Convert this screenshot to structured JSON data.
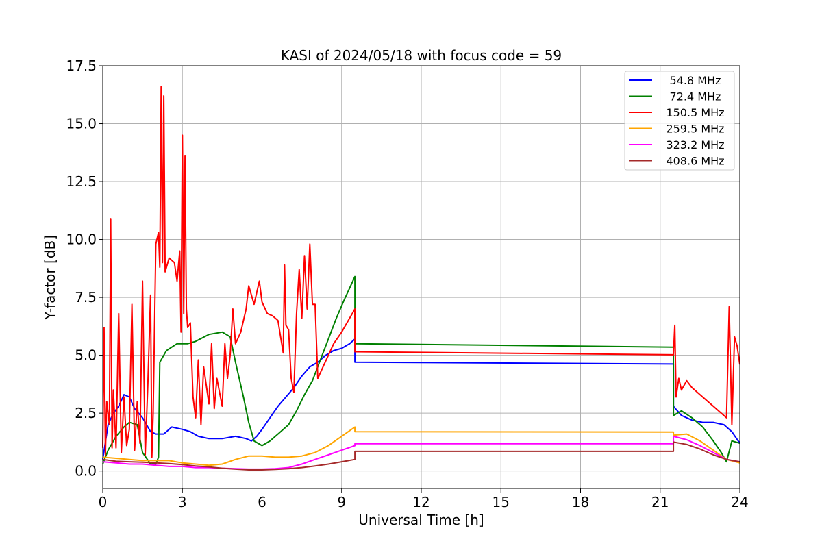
{
  "chart_data": {
    "type": "line",
    "title": "KASI of 2024/05/18 with focus code = 59",
    "xlabel": "Universal Time [h]",
    "ylabel": "Y-factor [dB]",
    "xlim": [
      0,
      24
    ],
    "ylim": [
      -0.75,
      17.5
    ],
    "xticks": [
      "0",
      "3",
      "6",
      "9",
      "12",
      "15",
      "18",
      "21",
      "24"
    ],
    "yticks": [
      "0.0",
      "2.5",
      "5.0",
      "7.5",
      "10.0",
      "12.5",
      "15.0",
      "17.5"
    ],
    "grid": true,
    "legend_position": "upper right",
    "series": [
      {
        "name": "54.8 MHz",
        "color": "#0000ff",
        "points": [
          [
            0.0,
            0.5
          ],
          [
            0.2,
            2.0
          ],
          [
            0.4,
            2.5
          ],
          [
            0.6,
            2.8
          ],
          [
            0.8,
            3.3
          ],
          [
            1.0,
            3.2
          ],
          [
            1.2,
            2.7
          ],
          [
            1.5,
            2.3
          ],
          [
            1.8,
            1.7
          ],
          [
            2.0,
            1.6
          ],
          [
            2.3,
            1.6
          ],
          [
            2.6,
            1.9
          ],
          [
            3.0,
            1.8
          ],
          [
            3.3,
            1.7
          ],
          [
            3.6,
            1.5
          ],
          [
            4.0,
            1.4
          ],
          [
            4.5,
            1.4
          ],
          [
            5.0,
            1.5
          ],
          [
            5.4,
            1.4
          ],
          [
            5.6,
            1.3
          ],
          [
            5.8,
            1.5
          ],
          [
            6.0,
            1.8
          ],
          [
            6.3,
            2.3
          ],
          [
            6.6,
            2.8
          ],
          [
            6.9,
            3.2
          ],
          [
            7.2,
            3.6
          ],
          [
            7.5,
            4.1
          ],
          [
            7.8,
            4.5
          ],
          [
            8.1,
            4.7
          ],
          [
            8.4,
            5.0
          ],
          [
            8.7,
            5.2
          ],
          [
            9.0,
            5.3
          ],
          [
            9.3,
            5.5
          ],
          [
            9.5,
            5.7
          ],
          [
            9.5,
            4.7
          ],
          [
            21.5,
            4.62
          ],
          [
            21.5,
            2.8
          ],
          [
            21.8,
            2.4
          ],
          [
            22.2,
            2.2
          ],
          [
            22.6,
            2.1
          ],
          [
            23.0,
            2.1
          ],
          [
            23.4,
            2.0
          ],
          [
            23.7,
            1.7
          ],
          [
            24.0,
            1.2
          ]
        ]
      },
      {
        "name": "72.4 MHz",
        "color": "#008000",
        "points": [
          [
            0.0,
            0.3
          ],
          [
            0.2,
            0.9
          ],
          [
            0.5,
            1.5
          ],
          [
            0.8,
            1.9
          ],
          [
            1.0,
            2.1
          ],
          [
            1.3,
            2.0
          ],
          [
            1.5,
            0.8
          ],
          [
            1.8,
            0.3
          ],
          [
            2.0,
            0.3
          ],
          [
            2.1,
            0.6
          ],
          [
            2.15,
            4.7
          ],
          [
            2.4,
            5.2
          ],
          [
            2.8,
            5.5
          ],
          [
            3.2,
            5.5
          ],
          [
            3.5,
            5.6
          ],
          [
            4.0,
            5.9
          ],
          [
            4.5,
            6.0
          ],
          [
            4.8,
            5.8
          ],
          [
            5.0,
            4.7
          ],
          [
            5.3,
            3.2
          ],
          [
            5.5,
            2.1
          ],
          [
            5.7,
            1.3
          ],
          [
            6.0,
            1.1
          ],
          [
            6.3,
            1.3
          ],
          [
            6.6,
            1.6
          ],
          [
            7.0,
            2.0
          ],
          [
            7.3,
            2.6
          ],
          [
            7.6,
            3.3
          ],
          [
            7.9,
            3.9
          ],
          [
            8.2,
            4.8
          ],
          [
            8.5,
            5.7
          ],
          [
            8.8,
            6.6
          ],
          [
            9.1,
            7.4
          ],
          [
            9.3,
            7.9
          ],
          [
            9.5,
            8.4
          ],
          [
            9.5,
            5.5
          ],
          [
            21.5,
            5.35
          ],
          [
            21.5,
            2.4
          ],
          [
            21.8,
            2.6
          ],
          [
            22.2,
            2.3
          ],
          [
            22.6,
            1.9
          ],
          [
            23.0,
            1.3
          ],
          [
            23.3,
            0.8
          ],
          [
            23.5,
            0.4
          ],
          [
            23.7,
            1.3
          ],
          [
            24.0,
            1.2
          ]
        ]
      },
      {
        "name": "150.5 MHz",
        "color": "#ff0000",
        "points": [
          [
            0.0,
            1.0
          ],
          [
            0.05,
            6.2
          ],
          [
            0.1,
            0.7
          ],
          [
            0.15,
            3.0
          ],
          [
            0.25,
            2.0
          ],
          [
            0.3,
            10.9
          ],
          [
            0.35,
            1.0
          ],
          [
            0.4,
            3.5
          ],
          [
            0.5,
            1.0
          ],
          [
            0.6,
            6.8
          ],
          [
            0.7,
            0.8
          ],
          [
            0.8,
            3.2
          ],
          [
            0.9,
            1.1
          ],
          [
            1.0,
            1.8
          ],
          [
            1.1,
            7.2
          ],
          [
            1.2,
            0.9
          ],
          [
            1.3,
            3.0
          ],
          [
            1.4,
            1.2
          ],
          [
            1.5,
            8.2
          ],
          [
            1.6,
            0.7
          ],
          [
            1.7,
            3.8
          ],
          [
            1.8,
            7.6
          ],
          [
            1.85,
            0.6
          ],
          [
            1.9,
            2.5
          ],
          [
            2.0,
            9.8
          ],
          [
            2.1,
            10.3
          ],
          [
            2.15,
            8.8
          ],
          [
            2.2,
            16.6
          ],
          [
            2.25,
            9.0
          ],
          [
            2.3,
            16.2
          ],
          [
            2.35,
            8.6
          ],
          [
            2.5,
            9.2
          ],
          [
            2.7,
            9.0
          ],
          [
            2.8,
            8.2
          ],
          [
            2.9,
            9.5
          ],
          [
            2.95,
            6.0
          ],
          [
            3.0,
            14.5
          ],
          [
            3.05,
            6.8
          ],
          [
            3.1,
            13.6
          ],
          [
            3.15,
            7.0
          ],
          [
            3.2,
            6.2
          ],
          [
            3.3,
            6.4
          ],
          [
            3.4,
            3.2
          ],
          [
            3.5,
            2.3
          ],
          [
            3.6,
            4.8
          ],
          [
            3.7,
            2.0
          ],
          [
            3.8,
            4.5
          ],
          [
            4.0,
            2.9
          ],
          [
            4.1,
            5.5
          ],
          [
            4.2,
            2.7
          ],
          [
            4.3,
            4.0
          ],
          [
            4.5,
            2.8
          ],
          [
            4.6,
            5.5
          ],
          [
            4.7,
            4.0
          ],
          [
            4.8,
            5.0
          ],
          [
            4.9,
            7.0
          ],
          [
            5.0,
            5.5
          ],
          [
            5.2,
            6.0
          ],
          [
            5.4,
            7.0
          ],
          [
            5.5,
            8.0
          ],
          [
            5.7,
            7.2
          ],
          [
            5.9,
            8.2
          ],
          [
            6.0,
            7.3
          ],
          [
            6.2,
            6.8
          ],
          [
            6.4,
            6.7
          ],
          [
            6.6,
            6.5
          ],
          [
            6.7,
            5.8
          ],
          [
            6.8,
            5.1
          ],
          [
            6.85,
            8.9
          ],
          [
            6.9,
            6.3
          ],
          [
            7.0,
            6.1
          ],
          [
            7.1,
            4.0
          ],
          [
            7.2,
            3.4
          ],
          [
            7.3,
            6.8
          ],
          [
            7.4,
            8.7
          ],
          [
            7.5,
            6.6
          ],
          [
            7.6,
            9.3
          ],
          [
            7.7,
            7.0
          ],
          [
            7.8,
            9.8
          ],
          [
            7.9,
            7.2
          ],
          [
            8.0,
            7.2
          ],
          [
            8.1,
            4.0
          ],
          [
            8.3,
            4.5
          ],
          [
            8.5,
            5.0
          ],
          [
            8.7,
            5.5
          ],
          [
            9.0,
            6.0
          ],
          [
            9.3,
            6.6
          ],
          [
            9.5,
            7.0
          ],
          [
            9.5,
            5.15
          ],
          [
            21.5,
            5.02
          ],
          [
            21.55,
            6.3
          ],
          [
            21.6,
            3.2
          ],
          [
            21.7,
            4.0
          ],
          [
            21.8,
            3.5
          ],
          [
            22.0,
            3.9
          ],
          [
            22.2,
            3.6
          ],
          [
            22.4,
            3.4
          ],
          [
            22.6,
            3.2
          ],
          [
            22.8,
            3.0
          ],
          [
            23.0,
            2.8
          ],
          [
            23.3,
            2.5
          ],
          [
            23.5,
            2.3
          ],
          [
            23.6,
            7.1
          ],
          [
            23.7,
            2.0
          ],
          [
            23.8,
            5.8
          ],
          [
            23.9,
            5.4
          ],
          [
            24.0,
            4.6
          ]
        ]
      },
      {
        "name": "259.5 MHz",
        "color": "#ffa500",
        "points": [
          [
            0.0,
            0.6
          ],
          [
            0.5,
            0.55
          ],
          [
            1.0,
            0.5
          ],
          [
            1.5,
            0.45
          ],
          [
            2.0,
            0.45
          ],
          [
            2.5,
            0.45
          ],
          [
            3.0,
            0.35
          ],
          [
            3.5,
            0.3
          ],
          [
            4.0,
            0.25
          ],
          [
            4.5,
            0.3
          ],
          [
            5.0,
            0.5
          ],
          [
            5.5,
            0.65
          ],
          [
            6.0,
            0.65
          ],
          [
            6.5,
            0.6
          ],
          [
            7.0,
            0.6
          ],
          [
            7.5,
            0.65
          ],
          [
            8.0,
            0.8
          ],
          [
            8.5,
            1.1
          ],
          [
            9.0,
            1.5
          ],
          [
            9.5,
            1.9
          ],
          [
            9.5,
            1.7
          ],
          [
            21.5,
            1.68
          ],
          [
            21.5,
            1.55
          ],
          [
            22.0,
            1.6
          ],
          [
            22.5,
            1.3
          ],
          [
            23.0,
            0.9
          ],
          [
            23.5,
            0.5
          ],
          [
            24.0,
            0.35
          ]
        ]
      },
      {
        "name": "323.2 MHz",
        "color": "#ff00ff",
        "points": [
          [
            0.0,
            0.4
          ],
          [
            0.5,
            0.35
          ],
          [
            1.0,
            0.3
          ],
          [
            1.5,
            0.3
          ],
          [
            2.0,
            0.25
          ],
          [
            2.5,
            0.2
          ],
          [
            3.0,
            0.2
          ],
          [
            3.5,
            0.15
          ],
          [
            4.0,
            0.15
          ],
          [
            4.5,
            0.12
          ],
          [
            5.0,
            0.1
          ],
          [
            5.5,
            0.08
          ],
          [
            6.0,
            0.08
          ],
          [
            6.5,
            0.1
          ],
          [
            7.0,
            0.15
          ],
          [
            7.5,
            0.3
          ],
          [
            8.0,
            0.5
          ],
          [
            8.5,
            0.7
          ],
          [
            9.0,
            0.9
          ],
          [
            9.5,
            1.1
          ],
          [
            9.5,
            1.18
          ],
          [
            21.5,
            1.18
          ],
          [
            21.5,
            1.5
          ],
          [
            22.0,
            1.35
          ],
          [
            22.5,
            1.1
          ],
          [
            23.0,
            0.8
          ],
          [
            23.5,
            0.5
          ],
          [
            24.0,
            0.4
          ]
        ]
      },
      {
        "name": "408.6 MHz",
        "color": "#a52a2a",
        "points": [
          [
            0.0,
            0.5
          ],
          [
            0.5,
            0.42
          ],
          [
            1.0,
            0.4
          ],
          [
            1.5,
            0.38
          ],
          [
            2.0,
            0.35
          ],
          [
            2.5,
            0.32
          ],
          [
            3.0,
            0.28
          ],
          [
            3.5,
            0.22
          ],
          [
            4.0,
            0.18
          ],
          [
            4.5,
            0.12
          ],
          [
            5.0,
            0.08
          ],
          [
            5.5,
            0.05
          ],
          [
            6.0,
            0.05
          ],
          [
            6.5,
            0.07
          ],
          [
            7.0,
            0.1
          ],
          [
            7.5,
            0.15
          ],
          [
            8.0,
            0.22
          ],
          [
            8.5,
            0.3
          ],
          [
            9.0,
            0.4
          ],
          [
            9.5,
            0.5
          ],
          [
            9.5,
            0.85
          ],
          [
            21.5,
            0.85
          ],
          [
            21.5,
            1.25
          ],
          [
            22.0,
            1.15
          ],
          [
            22.5,
            0.95
          ],
          [
            23.0,
            0.7
          ],
          [
            23.5,
            0.5
          ],
          [
            24.0,
            0.4
          ]
        ]
      }
    ]
  }
}
